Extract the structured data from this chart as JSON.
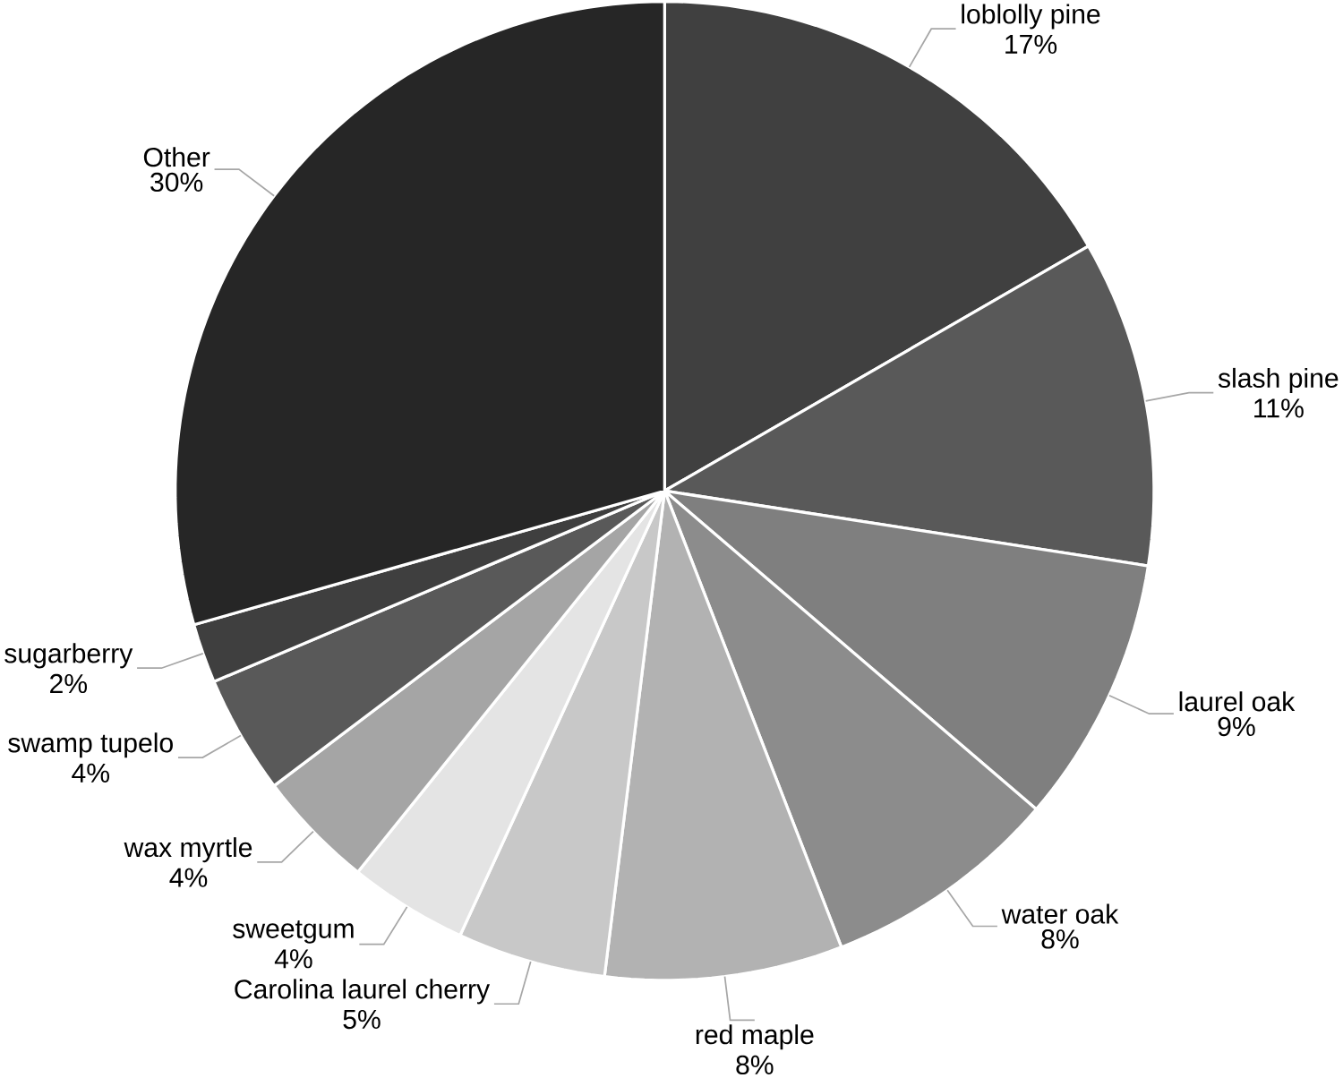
{
  "chart_data": {
    "type": "pie",
    "categories": [
      "loblolly pine",
      "slash pine",
      "laurel oak",
      "water oak",
      "red maple",
      "Carolina laurel cherry",
      "sweetgum",
      "wax myrtle",
      "swamp tupelo",
      "sugarberry",
      "Other"
    ],
    "values": [
      17,
      11,
      9,
      8,
      8,
      5,
      4,
      4,
      4,
      2,
      30
    ],
    "colors": [
      "#404040",
      "#595959",
      "#7f7f7f",
      "#8c8c8c",
      "#b2b2b2",
      "#c8c8c8",
      "#e4e4e4",
      "#a5a5a5",
      "#595959",
      "#3f3f3f",
      "#262626"
    ],
    "value_labels": [
      "17%",
      "11%",
      "9%",
      "8%",
      "8%",
      "5%",
      "4%",
      "4%",
      "4%",
      "2%",
      "30%"
    ]
  }
}
